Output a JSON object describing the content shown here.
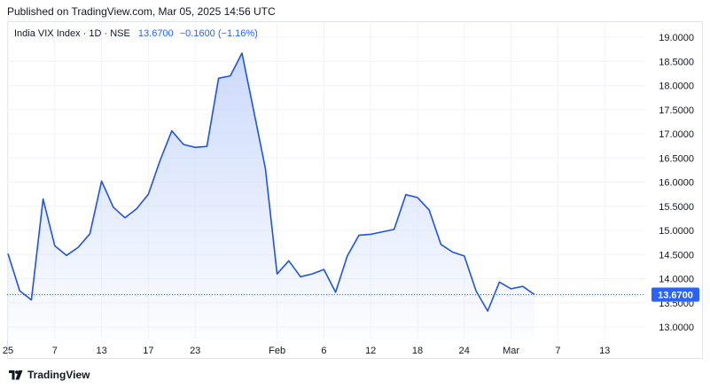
{
  "header": {
    "published": "Published on TradingView.com, Mar 05, 2025 14:56 UTC"
  },
  "legend": {
    "symbol": "India VIX Index · 1D · NSE",
    "last": "13.6700",
    "change": "−0.1600 (−1.16%)"
  },
  "price_tag": "13.6700",
  "footer": {
    "brand": "TradingView"
  },
  "colors": {
    "line": "#1e53e5",
    "accent": "#2962ff",
    "area_top": "#c9d8fb",
    "grid": "#f0f3fa",
    "text": "#131722"
  },
  "chart_data": {
    "type": "area",
    "title": "India VIX Index · 1D · NSE",
    "xlabel": "",
    "ylabel": "",
    "ylim": [
      12.8,
      19.2
    ],
    "grid": true,
    "x_ticks": [
      {
        "label": "25",
        "idx": 0
      },
      {
        "label": "7",
        "idx": 4
      },
      {
        "label": "13",
        "idx": 8
      },
      {
        "label": "17",
        "idx": 12
      },
      {
        "label": "23",
        "idx": 16
      },
      {
        "label": "Feb",
        "idx": 23
      },
      {
        "label": "6",
        "idx": 27
      },
      {
        "label": "12",
        "idx": 31
      },
      {
        "label": "18",
        "idx": 35
      },
      {
        "label": "24",
        "idx": 39
      },
      {
        "label": "Mar",
        "idx": 43
      },
      {
        "label": "7",
        "idx": 47
      },
      {
        "label": "13",
        "idx": 51
      }
    ],
    "y_ticks": [
      "19.0000",
      "18.5000",
      "18.0000",
      "17.5000",
      "17.0000",
      "16.5000",
      "16.0000",
      "15.5000",
      "15.0000",
      "14.5000",
      "14.0000",
      "13.5000",
      "13.0000"
    ],
    "y_tick_values": [
      19.0,
      18.5,
      18.0,
      17.5,
      17.0,
      16.5,
      16.0,
      15.5,
      15.0,
      14.5,
      14.0,
      13.5,
      13.0
    ],
    "values": [
      14.52,
      13.75,
      13.56,
      15.65,
      14.68,
      14.48,
      14.65,
      14.93,
      16.02,
      15.48,
      15.26,
      15.45,
      15.75,
      16.45,
      17.06,
      16.78,
      16.72,
      16.74,
      18.15,
      18.2,
      18.67,
      17.48,
      16.28,
      14.1,
      14.37,
      14.04,
      14.1,
      14.19,
      13.72,
      14.47,
      14.9,
      14.92,
      14.97,
      15.02,
      15.74,
      15.68,
      15.42,
      14.71,
      14.55,
      14.47,
      13.75,
      13.33,
      13.93,
      13.79,
      13.84,
      13.67
    ],
    "last_value": 13.67
  }
}
